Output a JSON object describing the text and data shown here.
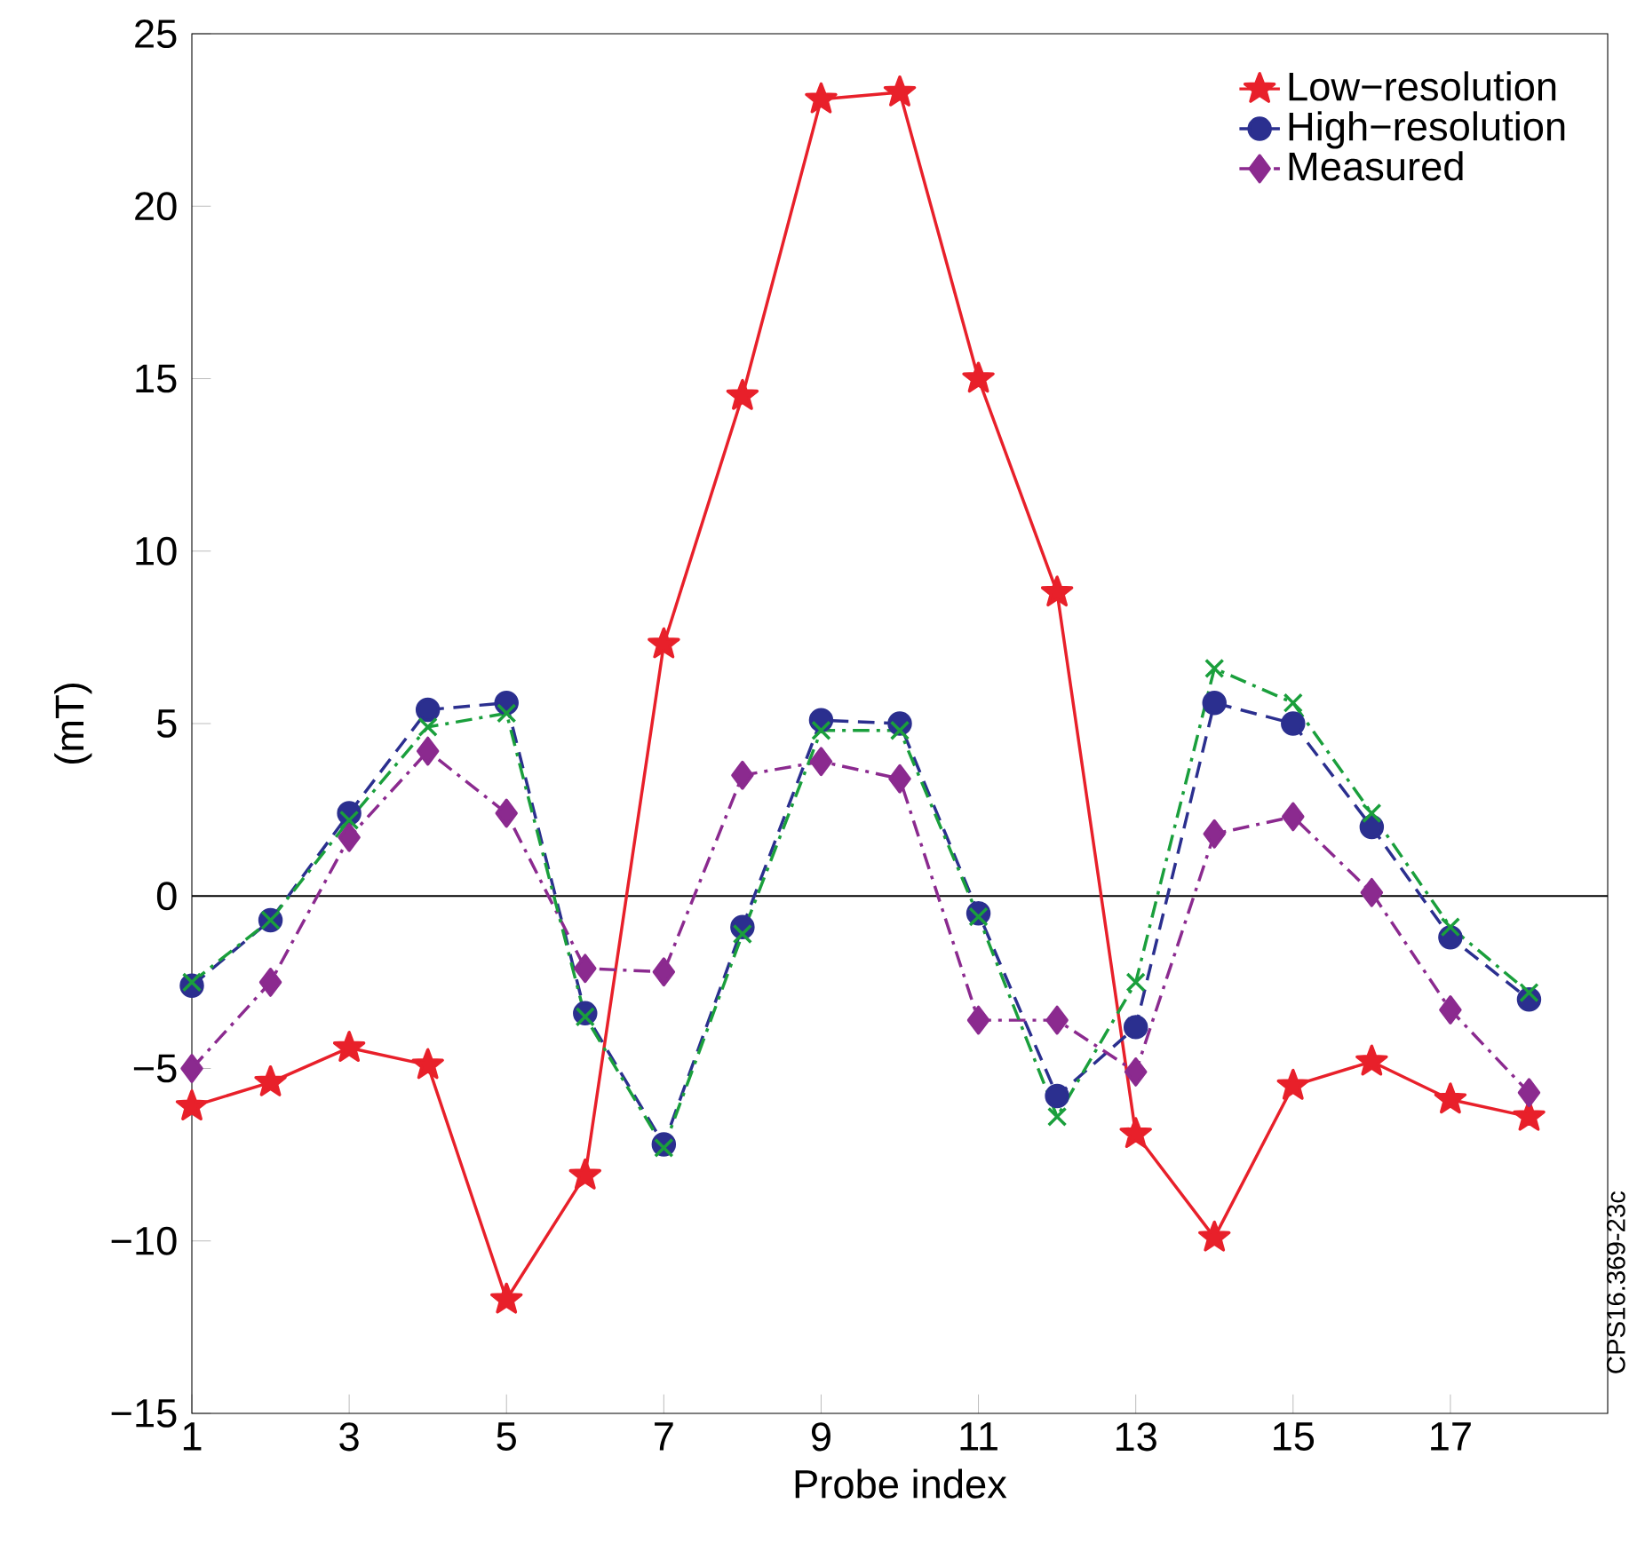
{
  "chart_data": {
    "type": "line",
    "xlabel": "Probe index",
    "ylabel": "(mT)",
    "x": [
      1,
      2,
      3,
      4,
      5,
      6,
      7,
      8,
      9,
      10,
      11,
      12,
      13,
      14,
      15,
      16,
      17,
      18
    ],
    "xlim": [
      1,
      19
    ],
    "xticks": [
      1,
      3,
      5,
      7,
      9,
      11,
      13,
      15,
      17
    ],
    "ylim": [
      -15,
      25
    ],
    "yticks": [
      {
        "value": -15,
        "label": "−15"
      },
      {
        "value": -10,
        "label": "−10"
      },
      {
        "value": -5,
        "label": "−5"
      },
      0,
      5,
      10,
      15,
      20,
      25
    ],
    "series": [
      {
        "color": "#1a9f3c",
        "marker": "cross",
        "line_style": "dashdot",
        "values": [
          -2.5,
          -0.7,
          2.2,
          4.9,
          5.3,
          -3.5,
          -7.3,
          -1.1,
          4.8,
          4.8,
          -0.6,
          -6.4,
          -2.5,
          6.6,
          5.6,
          2.4,
          -0.9,
          -2.8
        ]
      },
      {
        "name": "Low−resolution",
        "color": "#e8202a",
        "marker": "star",
        "line_style": "solid",
        "values": [
          -6.1,
          -5.4,
          -4.4,
          -4.9,
          -11.7,
          -8.1,
          7.3,
          14.5,
          23.1,
          23.3,
          15.0,
          8.8,
          -6.9,
          -9.9,
          -5.5,
          -4.8,
          -5.9,
          -6.4
        ]
      },
      {
        "name": "High−resolution",
        "color": "#2b2f8f",
        "marker": "circle",
        "line_style": "dashed",
        "values": [
          -2.6,
          -0.7,
          2.4,
          5.4,
          5.6,
          -3.4,
          -7.2,
          -0.9,
          5.1,
          5.0,
          -0.5,
          -5.8,
          -3.8,
          5.6,
          5.0,
          2.0,
          -1.2,
          -3.0
        ]
      },
      {
        "name": "Measured",
        "color": "#8b2a8f",
        "marker": "diamond",
        "line_style": "dashdot",
        "values": [
          -5.0,
          -2.5,
          1.7,
          4.2,
          2.4,
          -2.1,
          -2.2,
          3.5,
          3.9,
          3.4,
          -3.6,
          -3.6,
          -5.1,
          1.8,
          2.3,
          0.1,
          -3.3,
          -5.7
        ]
      }
    ],
    "ref_lines": [
      {
        "axis": "y",
        "value": 0,
        "color": "#000000"
      }
    ],
    "legend": "top right",
    "annotations": [
      "CPS16.369-23c"
    ]
  }
}
